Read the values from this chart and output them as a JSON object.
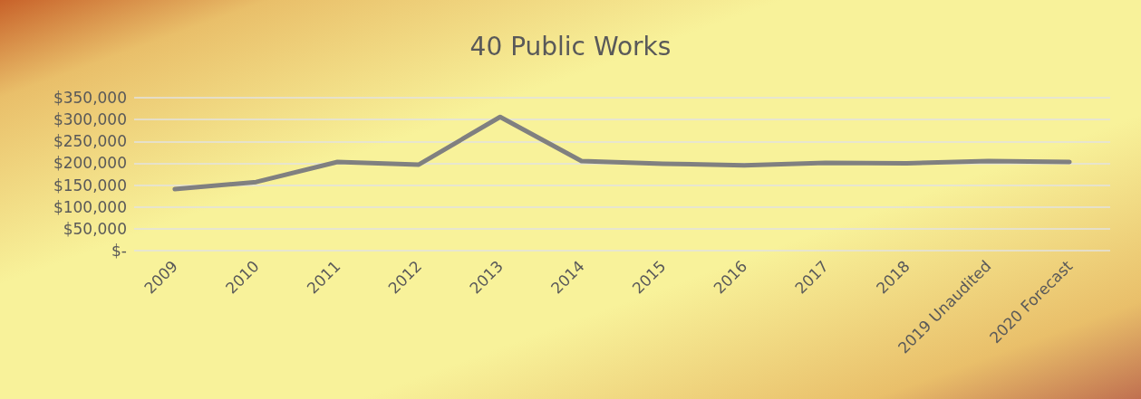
{
  "chart_data": {
    "type": "line",
    "title": "40 Public Works",
    "categories": [
      "2009",
      "2010",
      "2011",
      "2012",
      "2013",
      "2014",
      "2015",
      "2016",
      "2017",
      "2018",
      "2019 Unaudited",
      "2020 Forecast"
    ],
    "series": [
      {
        "color": "#808080",
        "values": [
          141000,
          157000,
          203000,
          197000,
          306000,
          205000,
          199000,
          195000,
          201000,
          200000,
          205000,
          203000
        ]
      }
    ],
    "ylim": [
      0,
      350000
    ],
    "yticks": [
      {
        "value": 0,
        "label": "$-"
      },
      {
        "value": 50000,
        "label": "$50,000"
      },
      {
        "value": 100000,
        "label": "$100,000"
      },
      {
        "value": 150000,
        "label": "$150,000"
      },
      {
        "value": 200000,
        "label": "$200,000"
      },
      {
        "value": 250000,
        "label": "$250,000"
      },
      {
        "value": 300000,
        "label": "$300,000"
      },
      {
        "value": 350000,
        "label": "$350,000"
      }
    ],
    "grid": "y",
    "marker": "none",
    "line_style": "solid"
  }
}
